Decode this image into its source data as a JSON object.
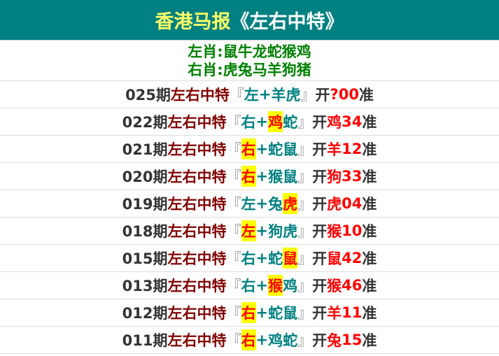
{
  "header": {
    "title_main": "香港马报",
    "title_sub": "《左右中特》"
  },
  "legend": {
    "left": "左肖:鼠牛龙蛇猴鸡",
    "right": "右肖:虎兔马羊狗猪"
  },
  "rows": [
    {
      "period": "025期",
      "label": "左右中特",
      "open": "『",
      "pick": [
        {
          "t": "左",
          "hl": false
        },
        {
          "t": "+",
          "hl": false
        },
        {
          "t": "羊",
          "hl": false
        },
        {
          "t": "虎",
          "hl": false
        }
      ],
      "close": "』",
      "kai": "开",
      "animal": "?",
      "number": " 00",
      "zhun": "准"
    },
    {
      "period": "022期",
      "label": "左右中特",
      "open": "『",
      "pick": [
        {
          "t": "右",
          "hl": false
        },
        {
          "t": "+",
          "hl": false
        },
        {
          "t": "鸡",
          "hl": true
        },
        {
          "t": "蛇",
          "hl": false
        }
      ],
      "close": "』",
      "kai": "开",
      "animal": "鸡",
      "number": "34",
      "zhun": "准"
    },
    {
      "period": "021期",
      "label": "左右中特",
      "open": "『",
      "pick": [
        {
          "t": "右",
          "hl": true
        },
        {
          "t": "+",
          "hl": false
        },
        {
          "t": "蛇",
          "hl": false
        },
        {
          "t": "鼠",
          "hl": false
        }
      ],
      "close": "』",
      "kai": "开",
      "animal": "羊",
      "number": "12",
      "zhun": "准"
    },
    {
      "period": "020期",
      "label": "左右中特",
      "open": "『",
      "pick": [
        {
          "t": "右",
          "hl": true
        },
        {
          "t": "+",
          "hl": false
        },
        {
          "t": "猴",
          "hl": false
        },
        {
          "t": "鼠",
          "hl": false
        }
      ],
      "close": "』",
      "kai": "开",
      "animal": "狗",
      "number": "33",
      "zhun": "准"
    },
    {
      "period": "019期",
      "label": "左右中特",
      "open": "『",
      "pick": [
        {
          "t": "左",
          "hl": false
        },
        {
          "t": "+",
          "hl": false
        },
        {
          "t": "兔",
          "hl": false
        },
        {
          "t": "虎",
          "hl": true
        }
      ],
      "close": "』",
      "kai": "开",
      "animal": "虎",
      "number": "04",
      "zhun": "准"
    },
    {
      "period": "018期",
      "label": "左右中特",
      "open": "『",
      "pick": [
        {
          "t": "左",
          "hl": true
        },
        {
          "t": "+",
          "hl": false
        },
        {
          "t": "狗",
          "hl": false
        },
        {
          "t": "虎",
          "hl": false
        }
      ],
      "close": "』",
      "kai": "开",
      "animal": "猴",
      "number": "10",
      "zhun": "准"
    },
    {
      "period": "015期",
      "label": "左右中特",
      "open": "『",
      "pick": [
        {
          "t": "右",
          "hl": false
        },
        {
          "t": "+",
          "hl": false
        },
        {
          "t": "蛇",
          "hl": false
        },
        {
          "t": "鼠",
          "hl": true
        }
      ],
      "close": "』",
      "kai": "开",
      "animal": "鼠",
      "number": "42",
      "zhun": "准"
    },
    {
      "period": "013期",
      "label": "左右中特",
      "open": "『",
      "pick": [
        {
          "t": "右",
          "hl": false
        },
        {
          "t": "+",
          "hl": false
        },
        {
          "t": "猴",
          "hl": true
        },
        {
          "t": "鸡",
          "hl": false
        }
      ],
      "close": "』",
      "kai": "开",
      "animal": "猴",
      "number": "46",
      "zhun": "准"
    },
    {
      "period": "012期",
      "label": "左右中特",
      "open": "『",
      "pick": [
        {
          "t": "右",
          "hl": true
        },
        {
          "t": "+",
          "hl": false
        },
        {
          "t": "蛇",
          "hl": false
        },
        {
          "t": "鼠",
          "hl": false
        }
      ],
      "close": "』",
      "kai": "开",
      "animal": "羊",
      "number": "11",
      "zhun": "准"
    },
    {
      "period": "011期",
      "label": "左右中特",
      "open": "『",
      "pick": [
        {
          "t": "右",
          "hl": true
        },
        {
          "t": "+",
          "hl": false
        },
        {
          "t": "鸡",
          "hl": false
        },
        {
          "t": "蛇",
          "hl": false
        }
      ],
      "close": "』",
      "kai": "开",
      "animal": "兔",
      "number": "15",
      "zhun": "准"
    }
  ]
}
